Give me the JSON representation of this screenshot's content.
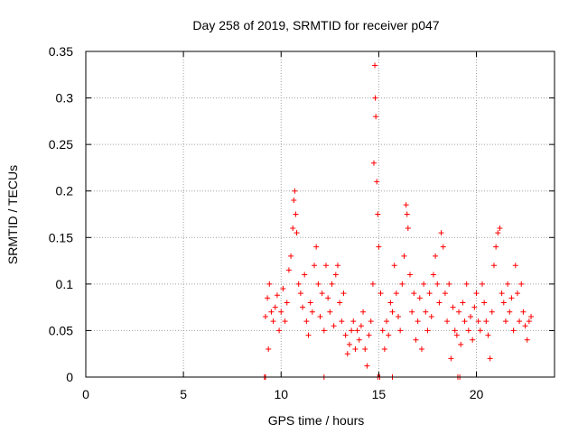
{
  "chart_data": {
    "type": "scatter",
    "title": "Day 258 of 2019, SRMTID for receiver p047",
    "xlabel": "GPS time / hours",
    "ylabel": "SRMTID / TECUs",
    "xlim": [
      0,
      24
    ],
    "ylim": [
      0,
      0.35
    ],
    "xticks": [
      "0",
      "5",
      "10",
      "15",
      "20"
    ],
    "yticks": [
      "0",
      "0.05",
      "0.1",
      "0.15",
      "0.2",
      "0.25",
      "0.3",
      "0.35"
    ],
    "grid": true,
    "marker": "+",
    "colors": {
      "series": "#ff0000",
      "frame": "#000000",
      "grid": "#a0a0a0"
    },
    "series": [
      {
        "name": "SRMTID",
        "points": [
          [
            9.2,
            0.065
          ],
          [
            9.3,
            0.085
          ],
          [
            9.35,
            0.03
          ],
          [
            9.4,
            0.1
          ],
          [
            9.5,
            0.07
          ],
          [
            9.6,
            0.06
          ],
          [
            9.7,
            0.075
          ],
          [
            9.8,
            0.088
          ],
          [
            9.9,
            0.05
          ],
          [
            10.0,
            0.07
          ],
          [
            10.1,
            0.095
          ],
          [
            10.2,
            0.06
          ],
          [
            10.3,
            0.08
          ],
          [
            10.4,
            0.115
          ],
          [
            10.5,
            0.13
          ],
          [
            10.6,
            0.16
          ],
          [
            10.65,
            0.19
          ],
          [
            10.7,
            0.2
          ],
          [
            10.75,
            0.175
          ],
          [
            10.8,
            0.155
          ],
          [
            10.9,
            0.1
          ],
          [
            11.0,
            0.09
          ],
          [
            11.1,
            0.075
          ],
          [
            11.2,
            0.11
          ],
          [
            11.3,
            0.06
          ],
          [
            11.4,
            0.045
          ],
          [
            11.5,
            0.08
          ],
          [
            11.6,
            0.07
          ],
          [
            11.7,
            0.12
          ],
          [
            11.8,
            0.14
          ],
          [
            11.9,
            0.1
          ],
          [
            12.0,
            0.065
          ],
          [
            12.1,
            0.09
          ],
          [
            12.2,
            0.05
          ],
          [
            12.3,
            0.12
          ],
          [
            12.4,
            0.085
          ],
          [
            12.5,
            0.07
          ],
          [
            12.6,
            0.1
          ],
          [
            12.7,
            0.055
          ],
          [
            12.8,
            0.11
          ],
          [
            12.9,
            0.12
          ],
          [
            13.0,
            0.08
          ],
          [
            13.1,
            0.06
          ],
          [
            13.2,
            0.09
          ],
          [
            13.3,
            0.045
          ],
          [
            13.4,
            0.025
          ],
          [
            13.5,
            0.035
          ],
          [
            13.6,
            0.05
          ],
          [
            13.7,
            0.06
          ],
          [
            13.8,
            0.03
          ],
          [
            13.9,
            0.05
          ],
          [
            14.0,
            0.04
          ],
          [
            14.1,
            0.055
          ],
          [
            14.2,
            0.07
          ],
          [
            14.3,
            0.03
          ],
          [
            14.4,
            0.012
          ],
          [
            14.5,
            0.045
          ],
          [
            14.6,
            0.06
          ],
          [
            14.7,
            0.1
          ],
          [
            14.75,
            0.23
          ],
          [
            14.8,
            0.335
          ],
          [
            14.82,
            0.3
          ],
          [
            14.85,
            0.28
          ],
          [
            14.9,
            0.21
          ],
          [
            14.95,
            0.175
          ],
          [
            15.0,
            0.14
          ],
          [
            15.1,
            0.09
          ],
          [
            15.2,
            0.05
          ],
          [
            15.3,
            0.03
          ],
          [
            15.4,
            0.06
          ],
          [
            15.5,
            0.045
          ],
          [
            15.6,
            0.08
          ],
          [
            15.7,
            0.07
          ],
          [
            15.8,
            0.12
          ],
          [
            15.9,
            0.09
          ],
          [
            16.0,
            0.065
          ],
          [
            16.1,
            0.05
          ],
          [
            16.2,
            0.1
          ],
          [
            16.3,
            0.13
          ],
          [
            16.4,
            0.185
          ],
          [
            16.45,
            0.175
          ],
          [
            16.5,
            0.16
          ],
          [
            16.6,
            0.11
          ],
          [
            16.7,
            0.07
          ],
          [
            16.8,
            0.09
          ],
          [
            16.9,
            0.04
          ],
          [
            17.0,
            0.06
          ],
          [
            17.1,
            0.085
          ],
          [
            17.2,
            0.03
          ],
          [
            17.3,
            0.1
          ],
          [
            17.4,
            0.07
          ],
          [
            17.5,
            0.05
          ],
          [
            17.6,
            0.09
          ],
          [
            17.7,
            0.065
          ],
          [
            17.8,
            0.11
          ],
          [
            17.9,
            0.13
          ],
          [
            18.0,
            0.1
          ],
          [
            18.1,
            0.08
          ],
          [
            18.2,
            0.155
          ],
          [
            18.3,
            0.14
          ],
          [
            18.4,
            0.09
          ],
          [
            18.5,
            0.06
          ],
          [
            18.6,
            0.1
          ],
          [
            18.7,
            0.02
          ],
          [
            18.8,
            0.075
          ],
          [
            18.9,
            0.05
          ],
          [
            19.0,
            0.045
          ],
          [
            19.1,
            0.07
          ],
          [
            19.2,
            0.035
          ],
          [
            19.3,
            0.08
          ],
          [
            19.4,
            0.06
          ],
          [
            19.5,
            0.1
          ],
          [
            19.6,
            0.05
          ],
          [
            19.7,
            0.065
          ],
          [
            19.8,
            0.04
          ],
          [
            19.9,
            0.075
          ],
          [
            20.0,
            0.09
          ],
          [
            20.1,
            0.06
          ],
          [
            20.2,
            0.05
          ],
          [
            20.3,
            0.1
          ],
          [
            20.4,
            0.08
          ],
          [
            20.5,
            0.06
          ],
          [
            20.6,
            0.045
          ],
          [
            20.7,
            0.02
          ],
          [
            20.8,
            0.07
          ],
          [
            20.9,
            0.12
          ],
          [
            21.0,
            0.14
          ],
          [
            21.1,
            0.155
          ],
          [
            21.2,
            0.16
          ],
          [
            21.3,
            0.09
          ],
          [
            21.4,
            0.08
          ],
          [
            21.5,
            0.06
          ],
          [
            21.6,
            0.1
          ],
          [
            21.7,
            0.07
          ],
          [
            21.8,
            0.085
          ],
          [
            21.9,
            0.05
          ],
          [
            22.0,
            0.12
          ],
          [
            22.1,
            0.09
          ],
          [
            22.2,
            0.06
          ],
          [
            22.3,
            0.1
          ],
          [
            22.4,
            0.07
          ],
          [
            22.5,
            0.055
          ],
          [
            22.6,
            0.04
          ],
          [
            22.7,
            0.06
          ],
          [
            22.8,
            0.065
          ],
          [
            9.15,
            0.0
          ],
          [
            9.2,
            0.0
          ],
          [
            12.2,
            0.0
          ],
          [
            14.95,
            0.0
          ],
          [
            15.05,
            0.0
          ],
          [
            15.7,
            0.0
          ],
          [
            19.05,
            0.0
          ],
          [
            19.15,
            0.0
          ]
        ]
      }
    ]
  }
}
